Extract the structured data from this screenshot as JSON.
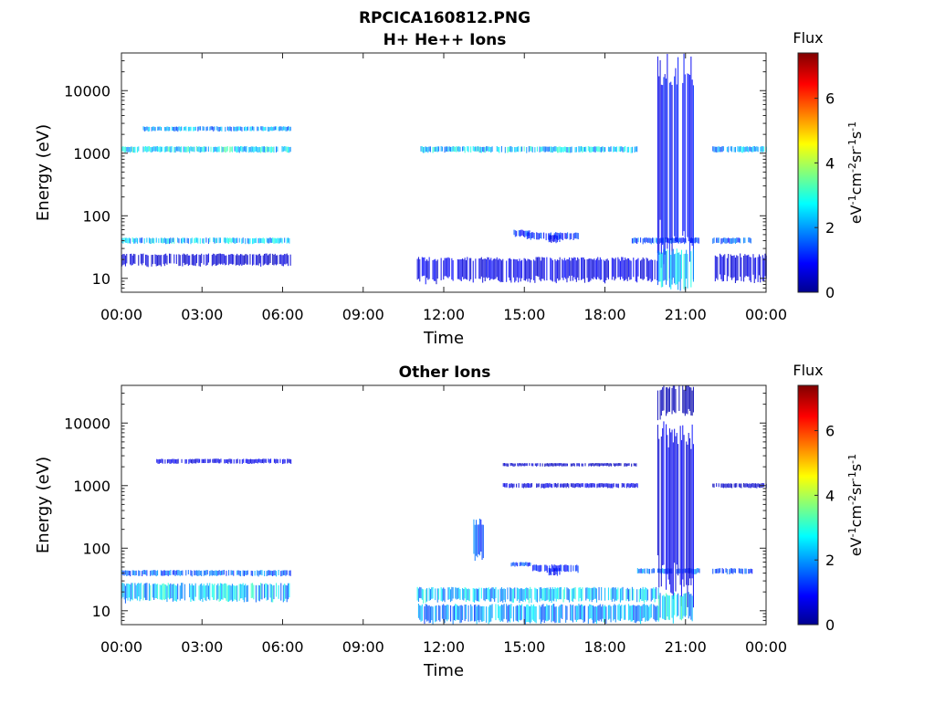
{
  "figure": {
    "title_line1": "RPCICA160812.PNG"
  },
  "colorbar": {
    "title": "Flux",
    "label": "eV-1cm-2sr-1s-1",
    "ticks": [
      "0",
      "2",
      "4",
      "6"
    ],
    "range": [
      0,
      7.4
    ],
    "colormap": "jet"
  },
  "colors": {
    "jet_dark_blue": "#00008f",
    "jet_blue": "#0000ff",
    "jet_cyan": "#00ffff",
    "jet_yellow": "#ffff00",
    "jet_red": "#ff0000",
    "jet_dark_red": "#800000"
  },
  "chart_data": [
    {
      "type": "heatmap",
      "title": "H+ He++ Ions",
      "xlabel": "Time",
      "ylabel": "Energy (eV)",
      "yscale": "log",
      "xlim": [
        "00:00",
        "24:00"
      ],
      "ylim": [
        6,
        40000
      ],
      "xticks": [
        "00:00",
        "03:00",
        "06:00",
        "09:00",
        "12:00",
        "15:00",
        "18:00",
        "21:00",
        "00:00"
      ],
      "yticks": [
        "10",
        "100",
        "1000",
        "10000"
      ],
      "grid": false,
      "bands": [
        {
          "t": [
            0.0,
            6.3
          ],
          "e": [
            1000,
            1300
          ],
          "flux": 2.8
        },
        {
          "t": [
            0.8,
            6.3
          ],
          "e": [
            2200,
            2700
          ],
          "flux": 2.2
        },
        {
          "t": [
            0.0,
            6.3
          ],
          "e": [
            35,
            45
          ],
          "flux": 2.5
        },
        {
          "t": [
            0.0,
            6.3
          ],
          "e": [
            15,
            25
          ],
          "flux": 0.6
        },
        {
          "t": [
            11.0,
            19.2
          ],
          "e": [
            1000,
            1300
          ],
          "flux": 2.6
        },
        {
          "t": [
            11.0,
            20.0
          ],
          "e": [
            8,
            22
          ],
          "flux": 0.8
        },
        {
          "t": [
            14.6,
            15.2
          ],
          "e": [
            45,
            60
          ],
          "flux": 1.4
        },
        {
          "t": [
            15.0,
            17.0
          ],
          "e": [
            40,
            55
          ],
          "flux": 1.3
        },
        {
          "t": [
            15.9,
            16.3
          ],
          "e": [
            35,
            50
          ],
          "flux": 1.0
        },
        {
          "t": [
            19.0,
            21.5
          ],
          "e": [
            35,
            45
          ],
          "flux": 1.6
        },
        {
          "t": [
            19.95,
            21.3
          ],
          "e": [
            8,
            40000
          ],
          "flux": 1.0
        },
        {
          "t": [
            19.95,
            21.3
          ],
          "e": [
            6,
            30
          ],
          "flux": 2.5
        },
        {
          "t": [
            22.0,
            23.5
          ],
          "e": [
            35,
            45
          ],
          "flux": 1.6
        },
        {
          "t": [
            22.0,
            24.0
          ],
          "e": [
            8,
            25
          ],
          "flux": 0.7
        },
        {
          "t": [
            22.0,
            24.0
          ],
          "e": [
            1000,
            1300
          ],
          "flux": 2.3
        }
      ]
    },
    {
      "type": "heatmap",
      "title": "Other Ions",
      "xlabel": "Time",
      "ylabel": "Energy (eV)",
      "yscale": "log",
      "xlim": [
        "00:00",
        "24:00"
      ],
      "ylim": [
        6,
        40000
      ],
      "xticks": [
        "00:00",
        "03:00",
        "06:00",
        "09:00",
        "12:00",
        "15:00",
        "18:00",
        "21:00",
        "00:00"
      ],
      "yticks": [
        "10",
        "100",
        "1000",
        "10000"
      ],
      "grid": false,
      "bands": [
        {
          "t": [
            1.3,
            6.3
          ],
          "e": [
            2200,
            2700
          ],
          "flux": 0.8
        },
        {
          "t": [
            0.0,
            6.3
          ],
          "e": [
            35,
            45
          ],
          "flux": 1.8
        },
        {
          "t": [
            0.0,
            6.3
          ],
          "e": [
            13,
            28
          ],
          "flux": 2.6
        },
        {
          "t": [
            11.0,
            20.0
          ],
          "e": [
            13,
            24
          ],
          "flux": 2.5
        },
        {
          "t": [
            11.0,
            20.0
          ],
          "e": [
            6,
            13
          ],
          "flux": 2.2
        },
        {
          "t": [
            13.1,
            13.5
          ],
          "e": [
            60,
            300
          ],
          "flux": 1.6
        },
        {
          "t": [
            14.5,
            15.3
          ],
          "e": [
            50,
            60
          ],
          "flux": 1.5
        },
        {
          "t": [
            15.3,
            17.0
          ],
          "e": [
            40,
            55
          ],
          "flux": 1.2
        },
        {
          "t": [
            15.9,
            16.3
          ],
          "e": [
            35,
            50
          ],
          "flux": 1.0
        },
        {
          "t": [
            14.2,
            19.2
          ],
          "e": [
            900,
            1100
          ],
          "flux": 0.7
        },
        {
          "t": [
            14.2,
            19.2
          ],
          "e": [
            2000,
            2300
          ],
          "flux": 0.5
        },
        {
          "t": [
            19.2,
            21.5
          ],
          "e": [
            38,
            48
          ],
          "flux": 1.8
        },
        {
          "t": [
            19.95,
            21.3
          ],
          "e": [
            8,
            11000
          ],
          "flux": 0.8
        },
        {
          "t": [
            19.95,
            21.3
          ],
          "e": [
            11000,
            40000
          ],
          "flux": 0.3
        },
        {
          "t": [
            19.95,
            21.3
          ],
          "e": [
            6,
            20
          ],
          "flux": 2.8
        },
        {
          "t": [
            22.0,
            23.5
          ],
          "e": [
            38,
            48
          ],
          "flux": 1.6
        },
        {
          "t": [
            22.0,
            24.0
          ],
          "e": [
            900,
            1100
          ],
          "flux": 0.5
        }
      ]
    }
  ]
}
